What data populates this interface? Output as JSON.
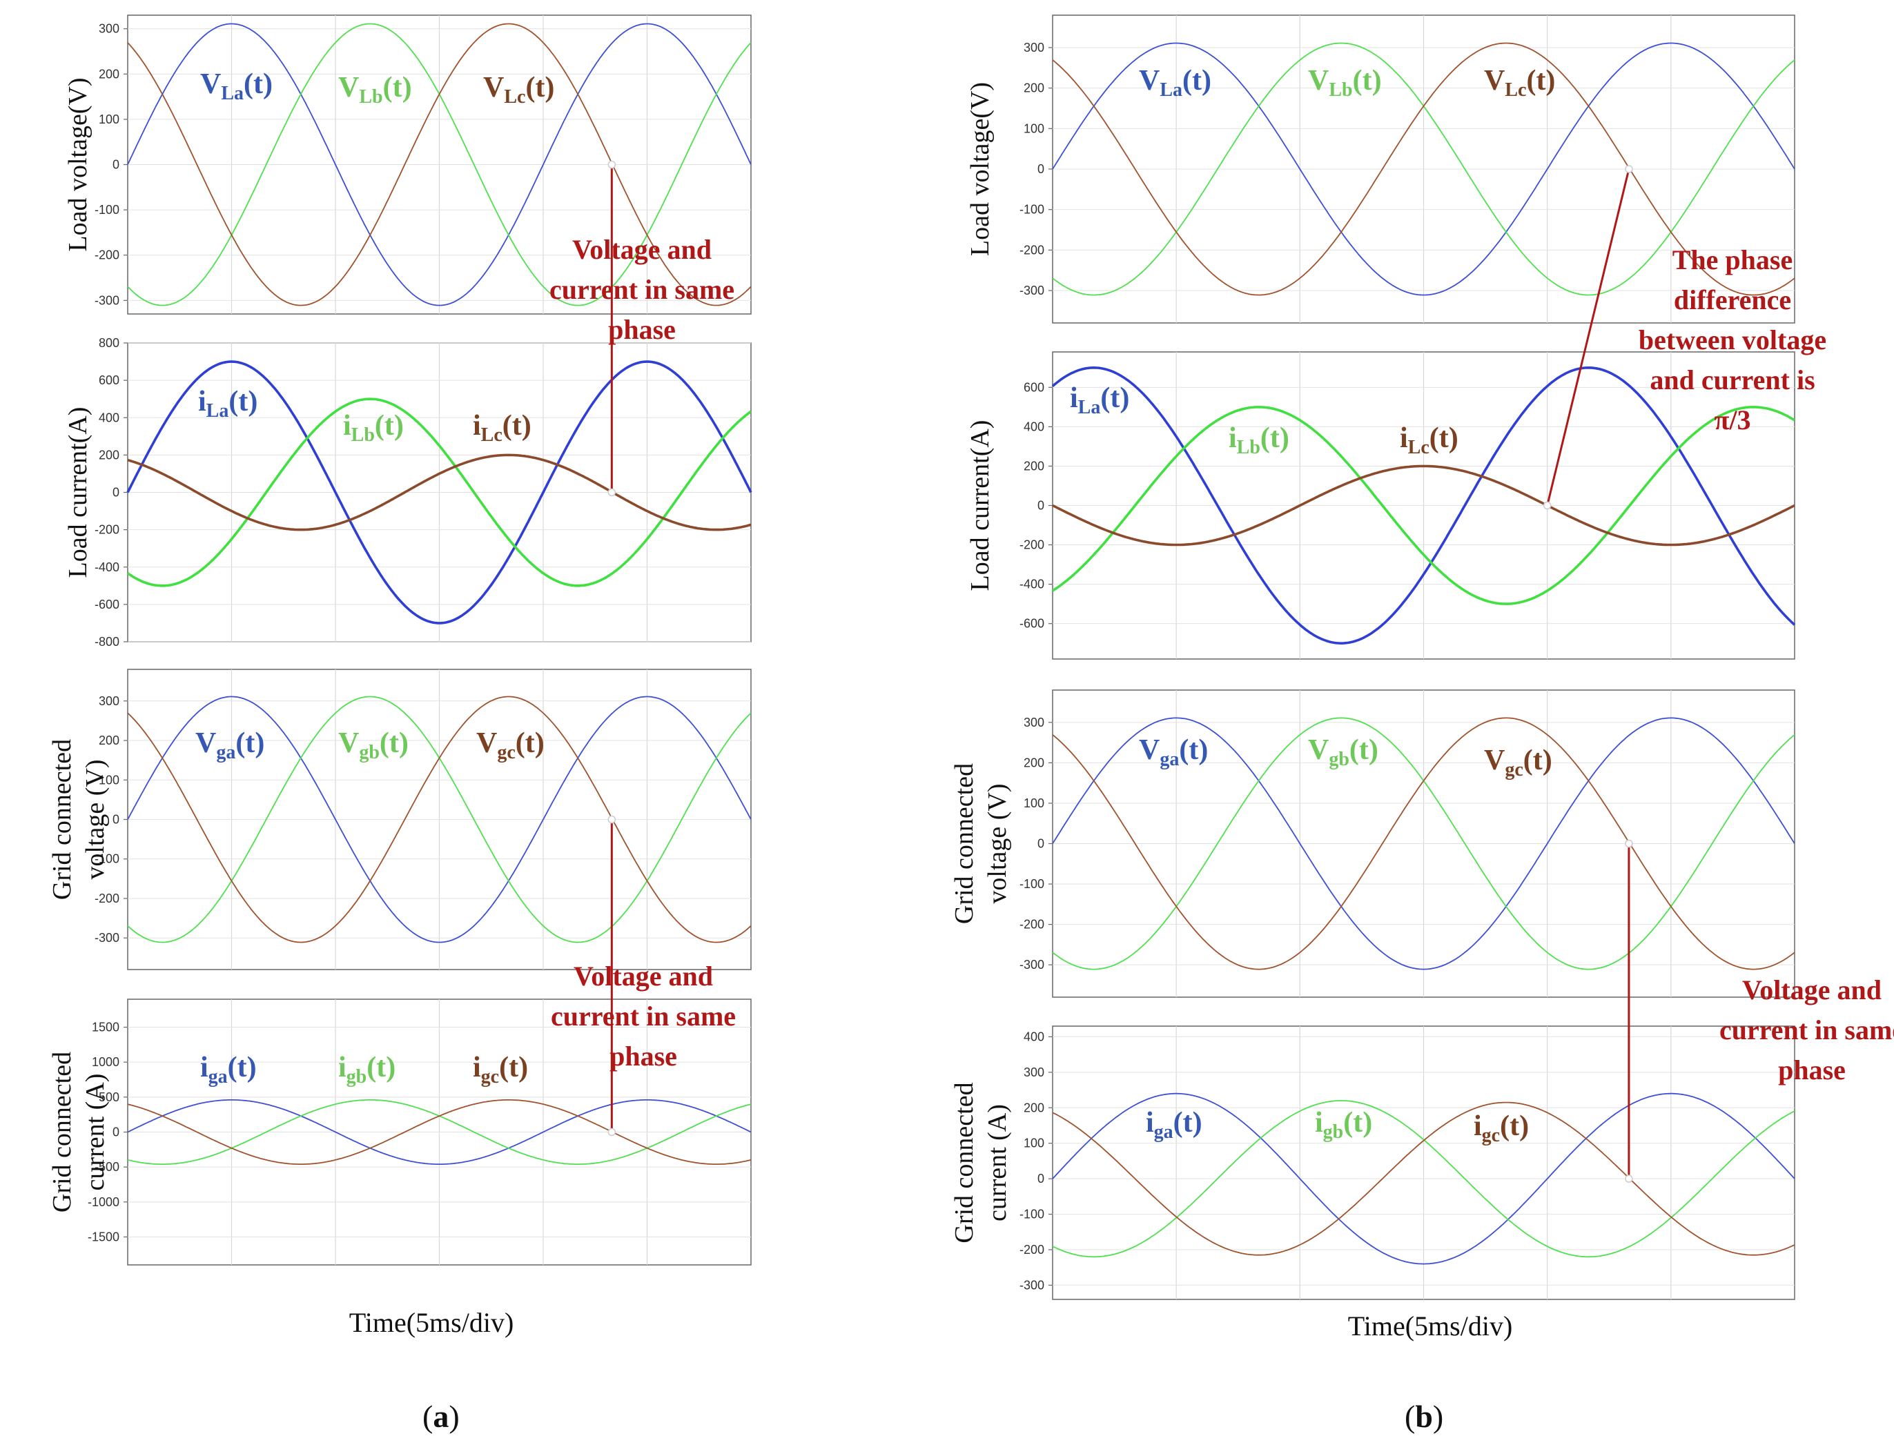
{
  "chart_data": [
    {
      "id": "a",
      "panel_label": "a",
      "type": "line",
      "xlabel": "Time(5ms/div)",
      "x_range_ms": [
        0,
        30
      ],
      "subplots": [
        {
          "ylabel_lines": [
            "Load voltage(V)"
          ],
          "ylim": [
            -330,
            330
          ],
          "yticks": [
            -300,
            -200,
            -100,
            0,
            100,
            200,
            300
          ],
          "series": [
            {
              "name": "V_La(t)",
              "base": "V",
              "sub": "La",
              "suffix": "(t)",
              "color": "#3d4fd6",
              "label_color": "#3558b5",
              "amplitude": 311,
              "phase_deg": 0
            },
            {
              "name": "V_Lb(t)",
              "base": "V",
              "sub": "Lb",
              "suffix": "(t)",
              "color": "#4fe04f",
              "label_color": "#6fc95a",
              "amplitude": 311,
              "phase_deg": -120
            },
            {
              "name": "V_Lc(t)",
              "base": "V",
              "sub": "Lc",
              "suffix": "(t)",
              "color": "#a0522d",
              "label_color": "#7a4020",
              "amplitude": 311,
              "phase_deg": 120
            }
          ]
        },
        {
          "ylabel_lines": [
            "Load current(A)"
          ],
          "ylim": [
            -800,
            800
          ],
          "yticks": [
            -800,
            -600,
            -400,
            -200,
            0,
            200,
            400,
            600,
            800
          ],
          "series": [
            {
              "name": "i_La(t)",
              "base": "i",
              "sub": "La",
              "suffix": "(t)",
              "color": "#2f3fd6",
              "label_color": "#3558b5",
              "amplitude": 700,
              "phase_deg": 0
            },
            {
              "name": "i_Lb(t)",
              "base": "i",
              "sub": "Lb",
              "suffix": "(t)",
              "color": "#3fe03f",
              "label_color": "#6fc95a",
              "amplitude": 500,
              "phase_deg": -120
            },
            {
              "name": "i_Lc(t)",
              "base": "i",
              "sub": "Lc",
              "suffix": "(t)",
              "color": "#8b4a2b",
              "label_color": "#7a4020",
              "amplitude": 200,
              "phase_deg": 120
            }
          ]
        },
        {
          "ylabel_lines": [
            "Grid connected",
            "voltage (V)"
          ],
          "ylim": [
            -380,
            380
          ],
          "yticks": [
            -300,
            -200,
            -100,
            0,
            100,
            200,
            300
          ],
          "series": [
            {
              "name": "V_ga(t)",
              "base": "V",
              "sub": "ga",
              "suffix": "(t)",
              "color": "#3d4fd6",
              "label_color": "#3558b5",
              "amplitude": 311,
              "phase_deg": 0
            },
            {
              "name": "V_gb(t)",
              "base": "V",
              "sub": "gb",
              "suffix": "(t)",
              "color": "#4fe04f",
              "label_color": "#6fc95a",
              "amplitude": 311,
              "phase_deg": -120
            },
            {
              "name": "V_gc(t)",
              "base": "V",
              "sub": "gc",
              "suffix": "(t)",
              "color": "#a0522d",
              "label_color": "#7a4020",
              "amplitude": 311,
              "phase_deg": 120
            }
          ]
        },
        {
          "ylabel_lines": [
            "Grid connected",
            "current (A)"
          ],
          "ylim": [
            -1900,
            1900
          ],
          "yticks": [
            -1500,
            -1000,
            -500,
            0,
            500,
            1000,
            1500
          ],
          "series": [
            {
              "name": "i_ga(t)",
              "base": "i",
              "sub": "ga",
              "suffix": "(t)",
              "color": "#3d4fd6",
              "label_color": "#3558b5",
              "amplitude": 460,
              "phase_deg": 0
            },
            {
              "name": "i_gb(t)",
              "base": "i",
              "sub": "gb",
              "suffix": "(t)",
              "color": "#4fe04f",
              "label_color": "#6fc95a",
              "amplitude": 460,
              "phase_deg": -120
            },
            {
              "name": "i_gc(t)",
              "base": "i",
              "sub": "gc",
              "suffix": "(t)",
              "color": "#a0522d",
              "label_color": "#7a4020",
              "amplitude": 460,
              "phase_deg": 120
            }
          ]
        }
      ],
      "annotations": [
        {
          "lines": [
            "Voltage and",
            "current in same",
            "phase"
          ],
          "from": {
            "subplot": 0,
            "t_ms": 23.3,
            "value": 0
          },
          "to": {
            "subplot": 1,
            "t_ms": 23.3,
            "value": 0
          }
        },
        {
          "lines": [
            "Voltage and",
            "current in same",
            "phase"
          ],
          "from": {
            "subplot": 2,
            "t_ms": 23.3,
            "value": 0
          },
          "to": {
            "subplot": 3,
            "t_ms": 23.3,
            "value": 0
          }
        }
      ]
    },
    {
      "id": "b",
      "panel_label": "b",
      "type": "line",
      "xlabel": "Time(5ms/div)",
      "x_range_ms": [
        0,
        30
      ],
      "subplots": [
        {
          "ylabel_lines": [
            "Load voltage(V)"
          ],
          "ylim": [
            -380,
            380
          ],
          "yticks": [
            -300,
            -200,
            -100,
            0,
            100,
            200,
            300
          ],
          "series": [
            {
              "name": "V_La(t)",
              "base": "V",
              "sub": "La",
              "suffix": "(t)",
              "color": "#3d4fd6",
              "label_color": "#3558b5",
              "amplitude": 311,
              "phase_deg": 0
            },
            {
              "name": "V_Lb(t)",
              "base": "V",
              "sub": "Lb",
              "suffix": "(t)",
              "color": "#4fe04f",
              "label_color": "#6fc95a",
              "amplitude": 311,
              "phase_deg": -120
            },
            {
              "name": "V_Lc(t)",
              "base": "V",
              "sub": "Lc",
              "suffix": "(t)",
              "color": "#a0522d",
              "label_color": "#7a4020",
              "amplitude": 311,
              "phase_deg": 120
            }
          ]
        },
        {
          "ylabel_lines": [
            "Load current(A)"
          ],
          "ylim": [
            -780,
            780
          ],
          "yticks": [
            -600,
            -400,
            -200,
            0,
            200,
            400,
            600
          ],
          "series": [
            {
              "name": "i_La(t)",
              "base": "i",
              "sub": "La",
              "suffix": "(t)",
              "color": "#2f3fd6",
              "label_color": "#3558b5",
              "amplitude": 700,
              "phase_deg": 60
            },
            {
              "name": "i_Lb(t)",
              "base": "i",
              "sub": "Lb",
              "suffix": "(t)",
              "color": "#3fe03f",
              "label_color": "#6fc95a",
              "amplitude": 500,
              "phase_deg": -60
            },
            {
              "name": "i_Lc(t)",
              "base": "i",
              "sub": "Lc",
              "suffix": "(t)",
              "color": "#8b4a2b",
              "label_color": "#7a4020",
              "amplitude": 200,
              "phase_deg": 180
            }
          ]
        },
        {
          "ylabel_lines": [
            "Grid connected",
            "voltage (V)"
          ],
          "ylim": [
            -380,
            380
          ],
          "yticks": [
            -300,
            -200,
            -100,
            0,
            100,
            200,
            300
          ],
          "series": [
            {
              "name": "V_ga(t)",
              "base": "V",
              "sub": "ga",
              "suffix": "(t)",
              "color": "#3d4fd6",
              "label_color": "#3558b5",
              "amplitude": 311,
              "phase_deg": 0
            },
            {
              "name": "V_gb(t)",
              "base": "V",
              "sub": "gb",
              "suffix": "(t)",
              "color": "#4fe04f",
              "label_color": "#6fc95a",
              "amplitude": 311,
              "phase_deg": -120
            },
            {
              "name": "V_gc(t)",
              "base": "V",
              "sub": "gc",
              "suffix": "(t)",
              "color": "#a0522d",
              "label_color": "#7a4020",
              "amplitude": 311,
              "phase_deg": 120
            }
          ]
        },
        {
          "ylabel_lines": [
            "Grid connected",
            "current (A)"
          ],
          "ylim": [
            -340,
            430
          ],
          "yticks": [
            -300,
            -200,
            -100,
            0,
            100,
            200,
            300,
            400
          ],
          "series": [
            {
              "name": "i_ga(t)",
              "base": "i",
              "sub": "ga",
              "suffix": "(t)",
              "color": "#3d4fd6",
              "label_color": "#3558b5",
              "amplitude": 240,
              "phase_deg": 0
            },
            {
              "name": "i_gb(t)",
              "base": "i",
              "sub": "gb",
              "suffix": "(t)",
              "color": "#4fe04f",
              "label_color": "#6fc95a",
              "amplitude": 220,
              "phase_deg": -120
            },
            {
              "name": "i_gc(t)",
              "base": "i",
              "sub": "gc",
              "suffix": "(t)",
              "color": "#a0522d",
              "label_color": "#7a4020",
              "amplitude": 215,
              "phase_deg": 120
            }
          ]
        }
      ],
      "annotations": [
        {
          "lines": [
            "The phase",
            "difference",
            "between voltage",
            "and current is",
            "π/3"
          ],
          "from": {
            "subplot": 0,
            "t_ms": 23.3,
            "value": 0
          },
          "to": {
            "subplot": 1,
            "t_ms": 20.0,
            "value": 0
          }
        },
        {
          "lines": [
            "Voltage and",
            "current in same",
            "phase"
          ],
          "from": {
            "subplot": 2,
            "t_ms": 23.3,
            "value": 0
          },
          "to": {
            "subplot": 3,
            "t_ms": 23.3,
            "value": 0
          }
        }
      ]
    }
  ]
}
